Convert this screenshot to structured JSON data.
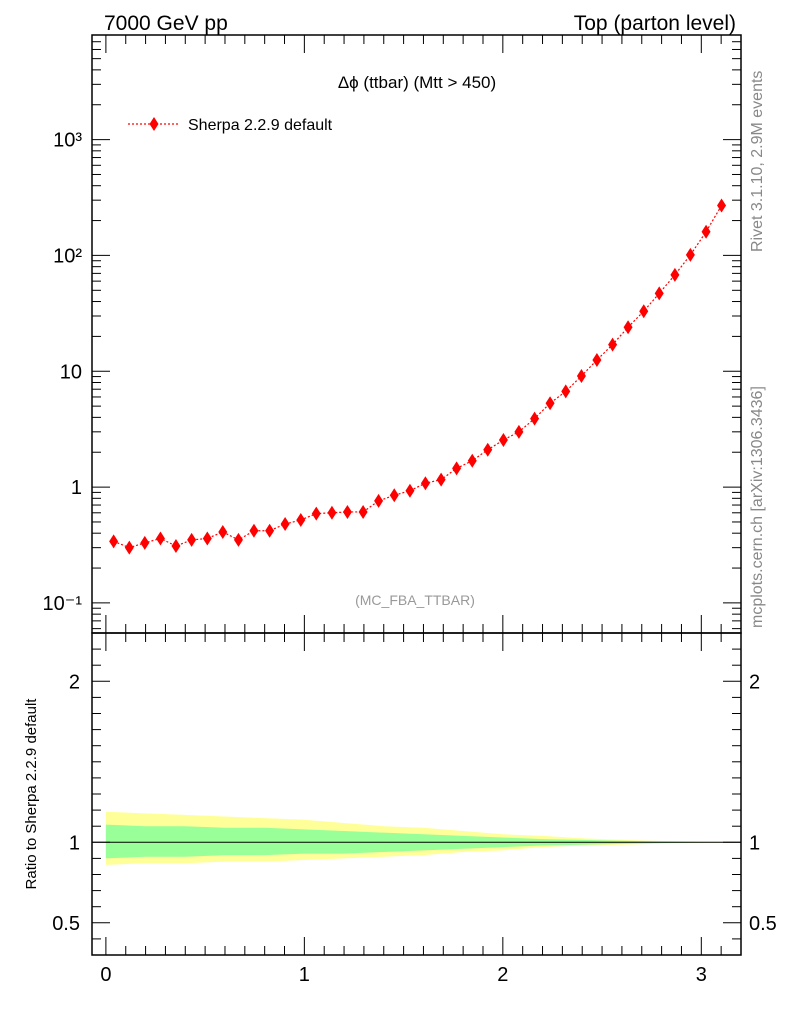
{
  "header": {
    "energy_label": "7000 GeV pp",
    "process_label": "Top (parton level)"
  },
  "side": {
    "rivet_label": "Rivet 3.1.10,  2.9M events",
    "source_label": "mcplots.cern.ch [arXiv:1306.3436]"
  },
  "colors": {
    "series": "#ff0000",
    "band_inner": "#99ff99",
    "band_outer": "#ffff99",
    "axis": "#000000",
    "watermark": "#999999"
  },
  "chart_data": [
    {
      "type": "scatter",
      "title": "Δϕ (ttbar) (Mtt > 450)",
      "watermark": "(MC_FBA_TTBAR)",
      "xlabel": "",
      "ylabel": "",
      "log_y": true,
      "xlim": [
        -0.07,
        3.2
      ],
      "ylim": [
        0.055,
        8000
      ],
      "y_tick_labels": [
        "10⁻¹",
        "1",
        "10",
        "10²",
        "10³"
      ],
      "y_tick_values": [
        0.1,
        1,
        10,
        100,
        1000
      ],
      "legend": {
        "placement": "top-left"
      },
      "series": [
        {
          "name": "Sherpa 2.2.9 default",
          "marker": "diamond",
          "line": "dotted",
          "x": [
            0.039,
            0.118,
            0.196,
            0.275,
            0.353,
            0.432,
            0.511,
            0.589,
            0.668,
            0.746,
            0.825,
            0.903,
            0.982,
            1.06,
            1.139,
            1.217,
            1.296,
            1.374,
            1.453,
            1.532,
            1.61,
            1.689,
            1.767,
            1.846,
            1.924,
            2.003,
            2.081,
            2.16,
            2.238,
            2.317,
            2.396,
            2.474,
            2.553,
            2.631,
            2.71,
            2.788,
            2.867,
            2.945,
            3.024,
            3.102
          ],
          "y": [
            0.34,
            0.3,
            0.33,
            0.36,
            0.31,
            0.35,
            0.36,
            0.41,
            0.35,
            0.42,
            0.42,
            0.48,
            0.52,
            0.59,
            0.6,
            0.61,
            0.61,
            0.76,
            0.85,
            0.93,
            1.08,
            1.16,
            1.45,
            1.69,
            2.1,
            2.55,
            3.0,
            3.9,
            5.3,
            6.7,
            9.1,
            12.5,
            17.0,
            24.0,
            33.0,
            47.0,
            68.0,
            101,
            160,
            270
          ]
        }
      ]
    },
    {
      "type": "area",
      "title": "",
      "xlabel": "",
      "ylabel": "Ratio to Sherpa 2.2.9 default",
      "xlim": [
        -0.07,
        3.2
      ],
      "ylim": [
        0.3,
        2.3
      ],
      "x_tick_labels": [
        "0",
        "1",
        "2",
        "3"
      ],
      "x_tick_values": [
        0,
        1,
        2,
        3
      ],
      "y_tick_labels": [
        "0.5",
        "1",
        "2"
      ],
      "y_tick_values": [
        0.5,
        1,
        2
      ],
      "reference_line": 1,
      "x": [
        0.0,
        0.2,
        0.4,
        0.6,
        0.8,
        1.0,
        1.2,
        1.4,
        1.6,
        1.8,
        2.0,
        2.2,
        2.4,
        2.6,
        2.8,
        3.0,
        3.2
      ],
      "inner_band": {
        "low": [
          0.9,
          0.91,
          0.91,
          0.92,
          0.92,
          0.93,
          0.93,
          0.94,
          0.95,
          0.96,
          0.97,
          0.98,
          0.985,
          0.99,
          0.995,
          0.998,
          0.999
        ],
        "high": [
          1.11,
          1.1,
          1.1,
          1.09,
          1.09,
          1.08,
          1.07,
          1.06,
          1.05,
          1.04,
          1.03,
          1.02,
          1.015,
          1.01,
          1.005,
          1.002,
          1.001
        ]
      },
      "outer_band": {
        "low": [
          0.86,
          0.87,
          0.87,
          0.88,
          0.88,
          0.89,
          0.9,
          0.91,
          0.92,
          0.94,
          0.95,
          0.97,
          0.98,
          0.985,
          0.992,
          0.997,
          0.999
        ],
        "high": [
          1.19,
          1.18,
          1.17,
          1.16,
          1.15,
          1.14,
          1.12,
          1.1,
          1.09,
          1.07,
          1.05,
          1.04,
          1.025,
          1.015,
          1.008,
          1.003,
          1.001
        ]
      }
    }
  ]
}
